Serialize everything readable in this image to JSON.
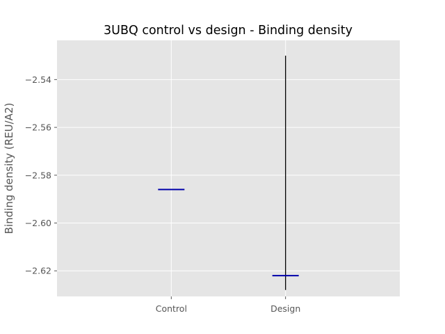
{
  "chart_data": {
    "type": "box",
    "title": "3UBQ control vs design - Binding density",
    "xlabel": "",
    "ylabel": "Binding density (REU/A2)",
    "categories": [
      "Control",
      "Design"
    ],
    "boxes": [
      {
        "category": "Control",
        "median": -2.586,
        "whisker_low": -2.586,
        "whisker_high": -2.586
      },
      {
        "category": "Design",
        "median": -2.622,
        "whisker_low": -2.628,
        "whisker_high": -2.53
      }
    ],
    "yticks": [
      -2.54,
      -2.56,
      -2.58,
      -2.6,
      -2.62
    ],
    "ytick_labels": [
      "−2.54",
      "−2.56",
      "−2.58",
      "−2.60",
      "−2.62"
    ],
    "ylim": [
      -2.6307,
      -2.5236
    ],
    "grid": true,
    "colors": {
      "background": "#e5e5e5",
      "grid": "#ffffff",
      "median": "#0000aa",
      "whisker": "#000000",
      "text": "#555555"
    }
  }
}
